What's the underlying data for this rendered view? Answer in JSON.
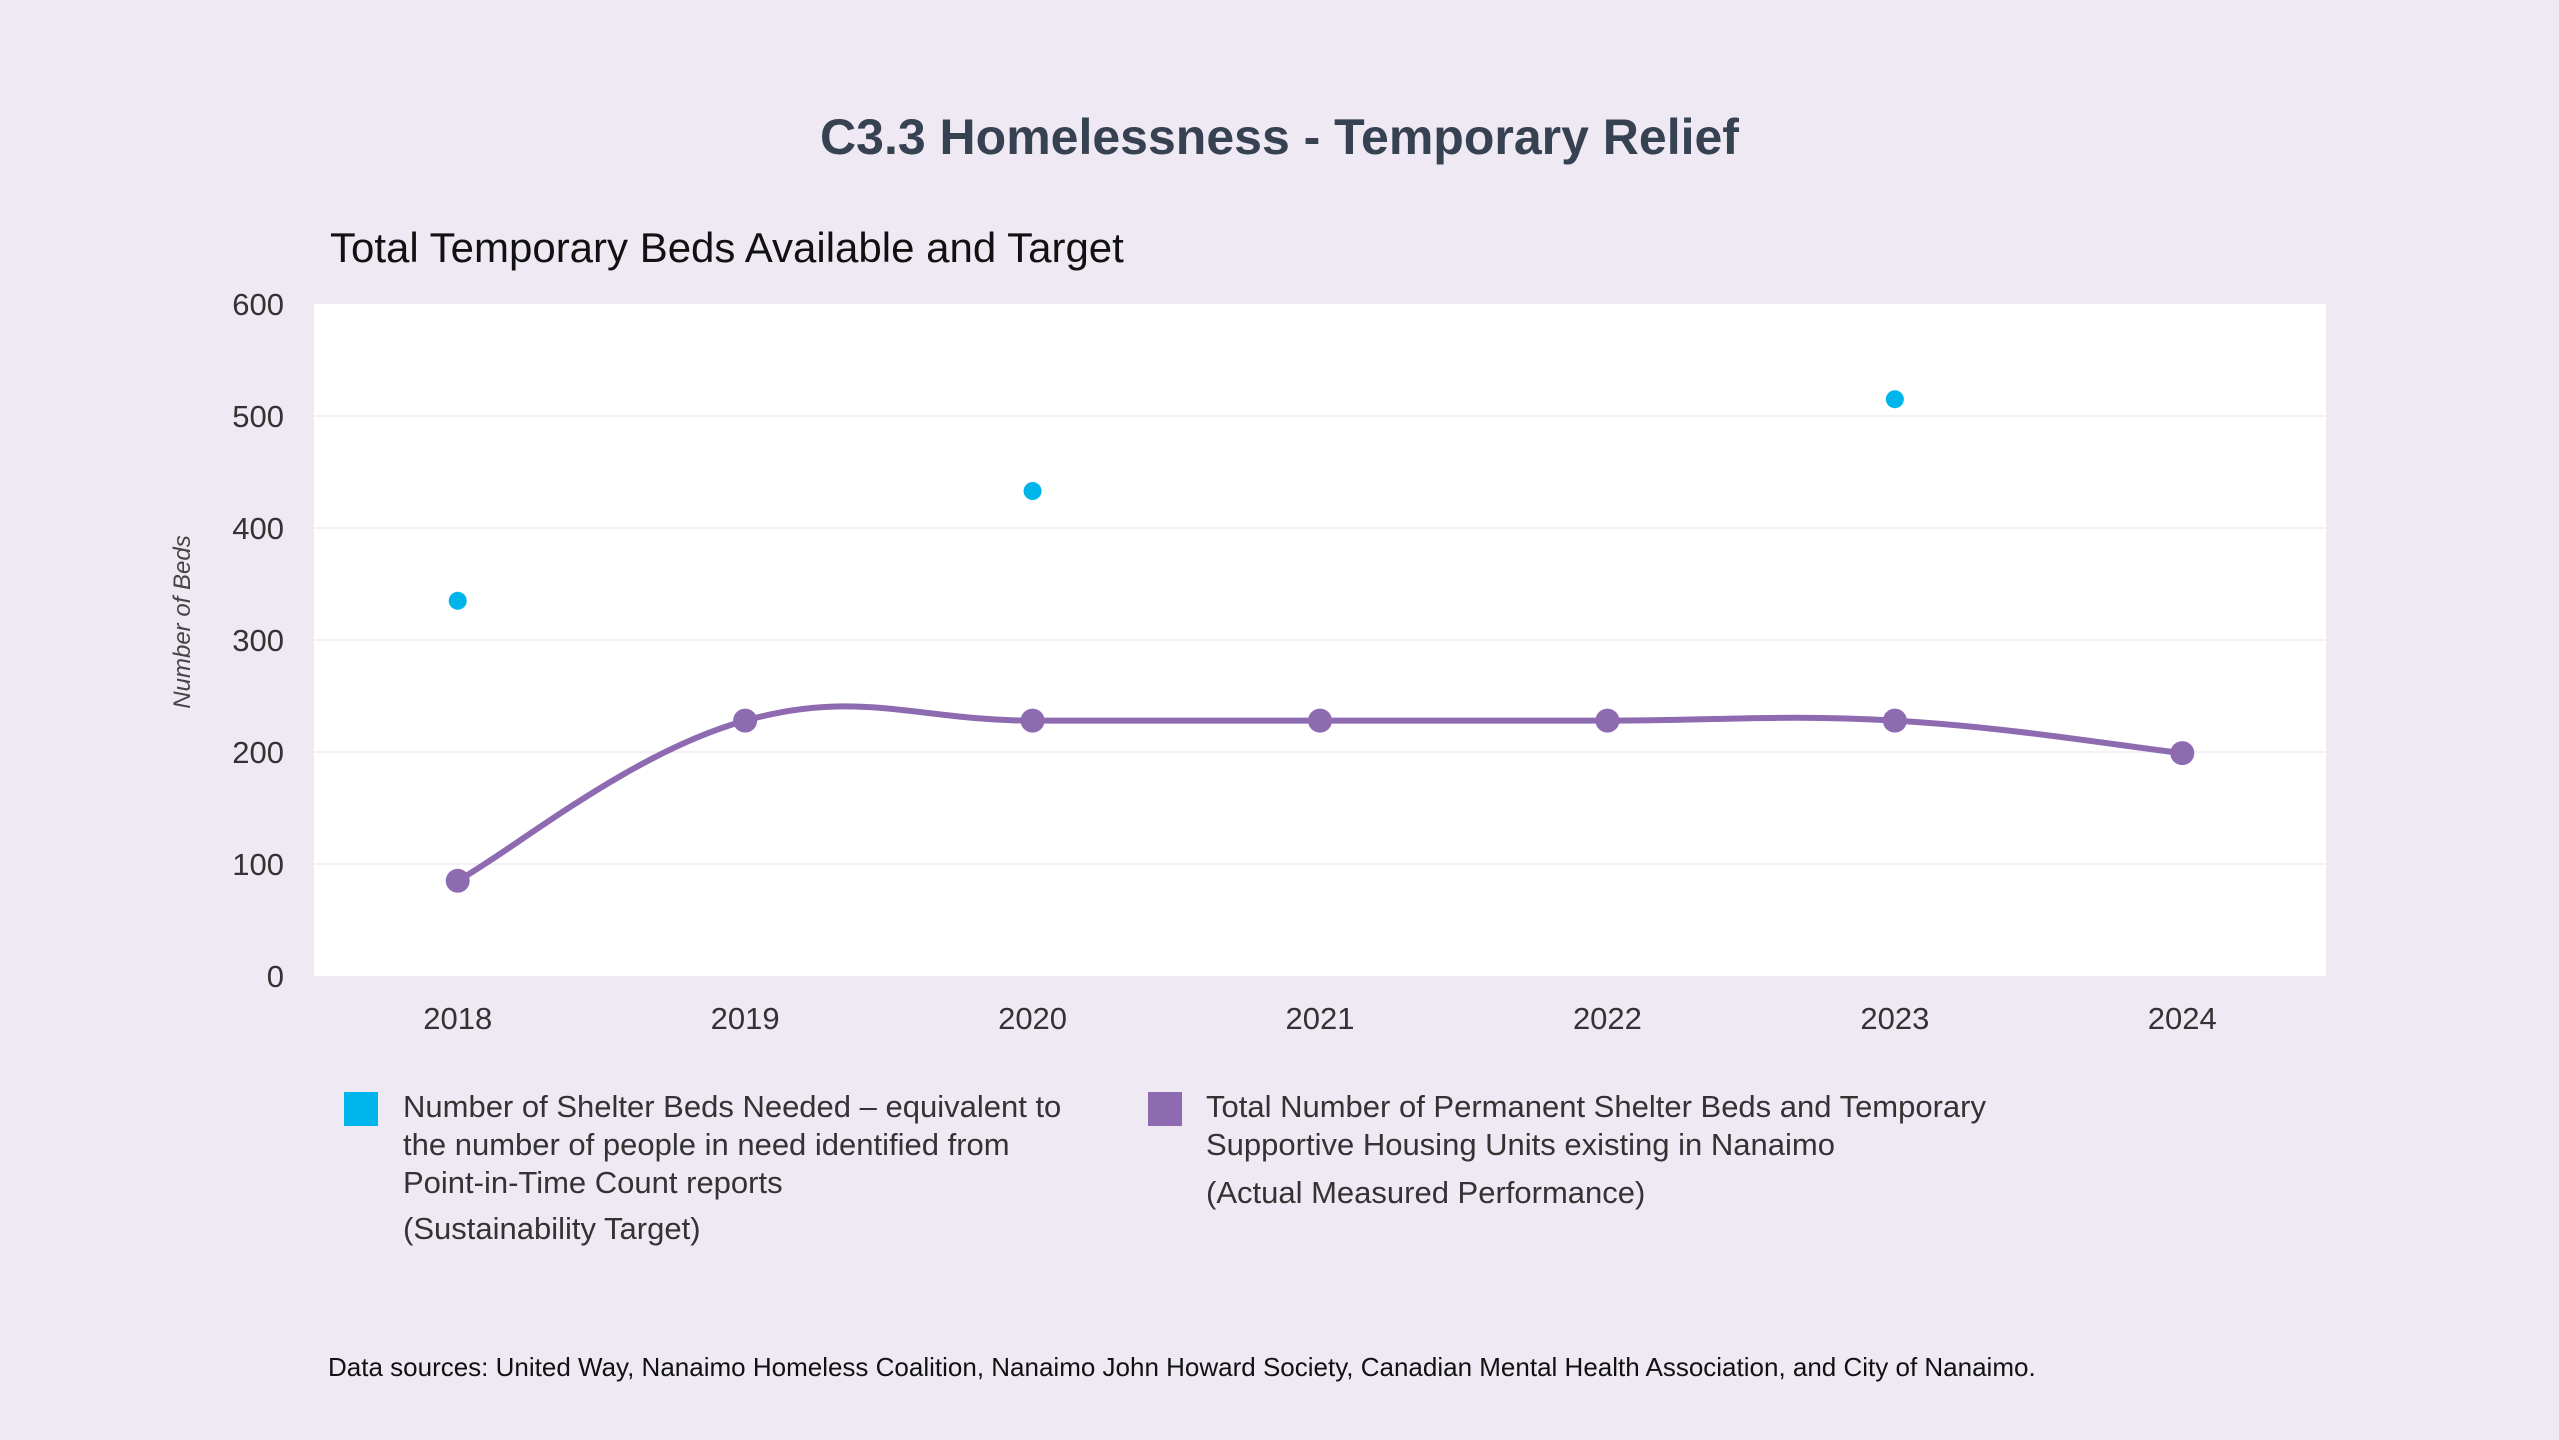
{
  "title": "C3.3 Homelessness - Temporary Relief",
  "source": "Data sources: United Way, Nanaimo Homeless Coalition, Nanaimo John Howard Society, Canadian Mental Health Association, and City of Nanaimo.",
  "colors": {
    "background": "#eee9f3",
    "plot_bg": "#ffffff",
    "target": "#00b5ec",
    "actual": "#8e6bb1"
  },
  "legend": [
    {
      "swatch_color": "#00b5ec",
      "label": "Number of Shelter Beds Needed – equivalent to\nthe number of people in need identified from\nPoint-in-Time Count reports",
      "sublabel": "(Sustainability Target)"
    },
    {
      "swatch_color": "#8e6bb1",
      "label": "Total Number of Permanent Shelter Beds and Temporary\nSupportive Housing Units existing in Nanaimo",
      "sublabel": "(Actual Measured Performance)"
    }
  ],
  "chart_data": {
    "type": "line",
    "title": "Total Temporary Beds Available and Target",
    "xlabel": "",
    "ylabel": "Number of Beds",
    "categories": [
      "2018",
      "2019",
      "2020",
      "2021",
      "2022",
      "2023",
      "2024"
    ],
    "ylim": [
      0,
      600
    ],
    "yticks": [
      0,
      100,
      200,
      300,
      400,
      500,
      600
    ],
    "grid": true,
    "legend_position": "bottom",
    "series": [
      {
        "type": "scatter",
        "color": "#00b5ec",
        "values": [
          335,
          null,
          433,
          null,
          null,
          515,
          null
        ]
      },
      {
        "type": "line",
        "smooth": true,
        "color": "#8e6bb1",
        "values": [
          85,
          228,
          228,
          228,
          228,
          228,
          199
        ]
      }
    ]
  }
}
